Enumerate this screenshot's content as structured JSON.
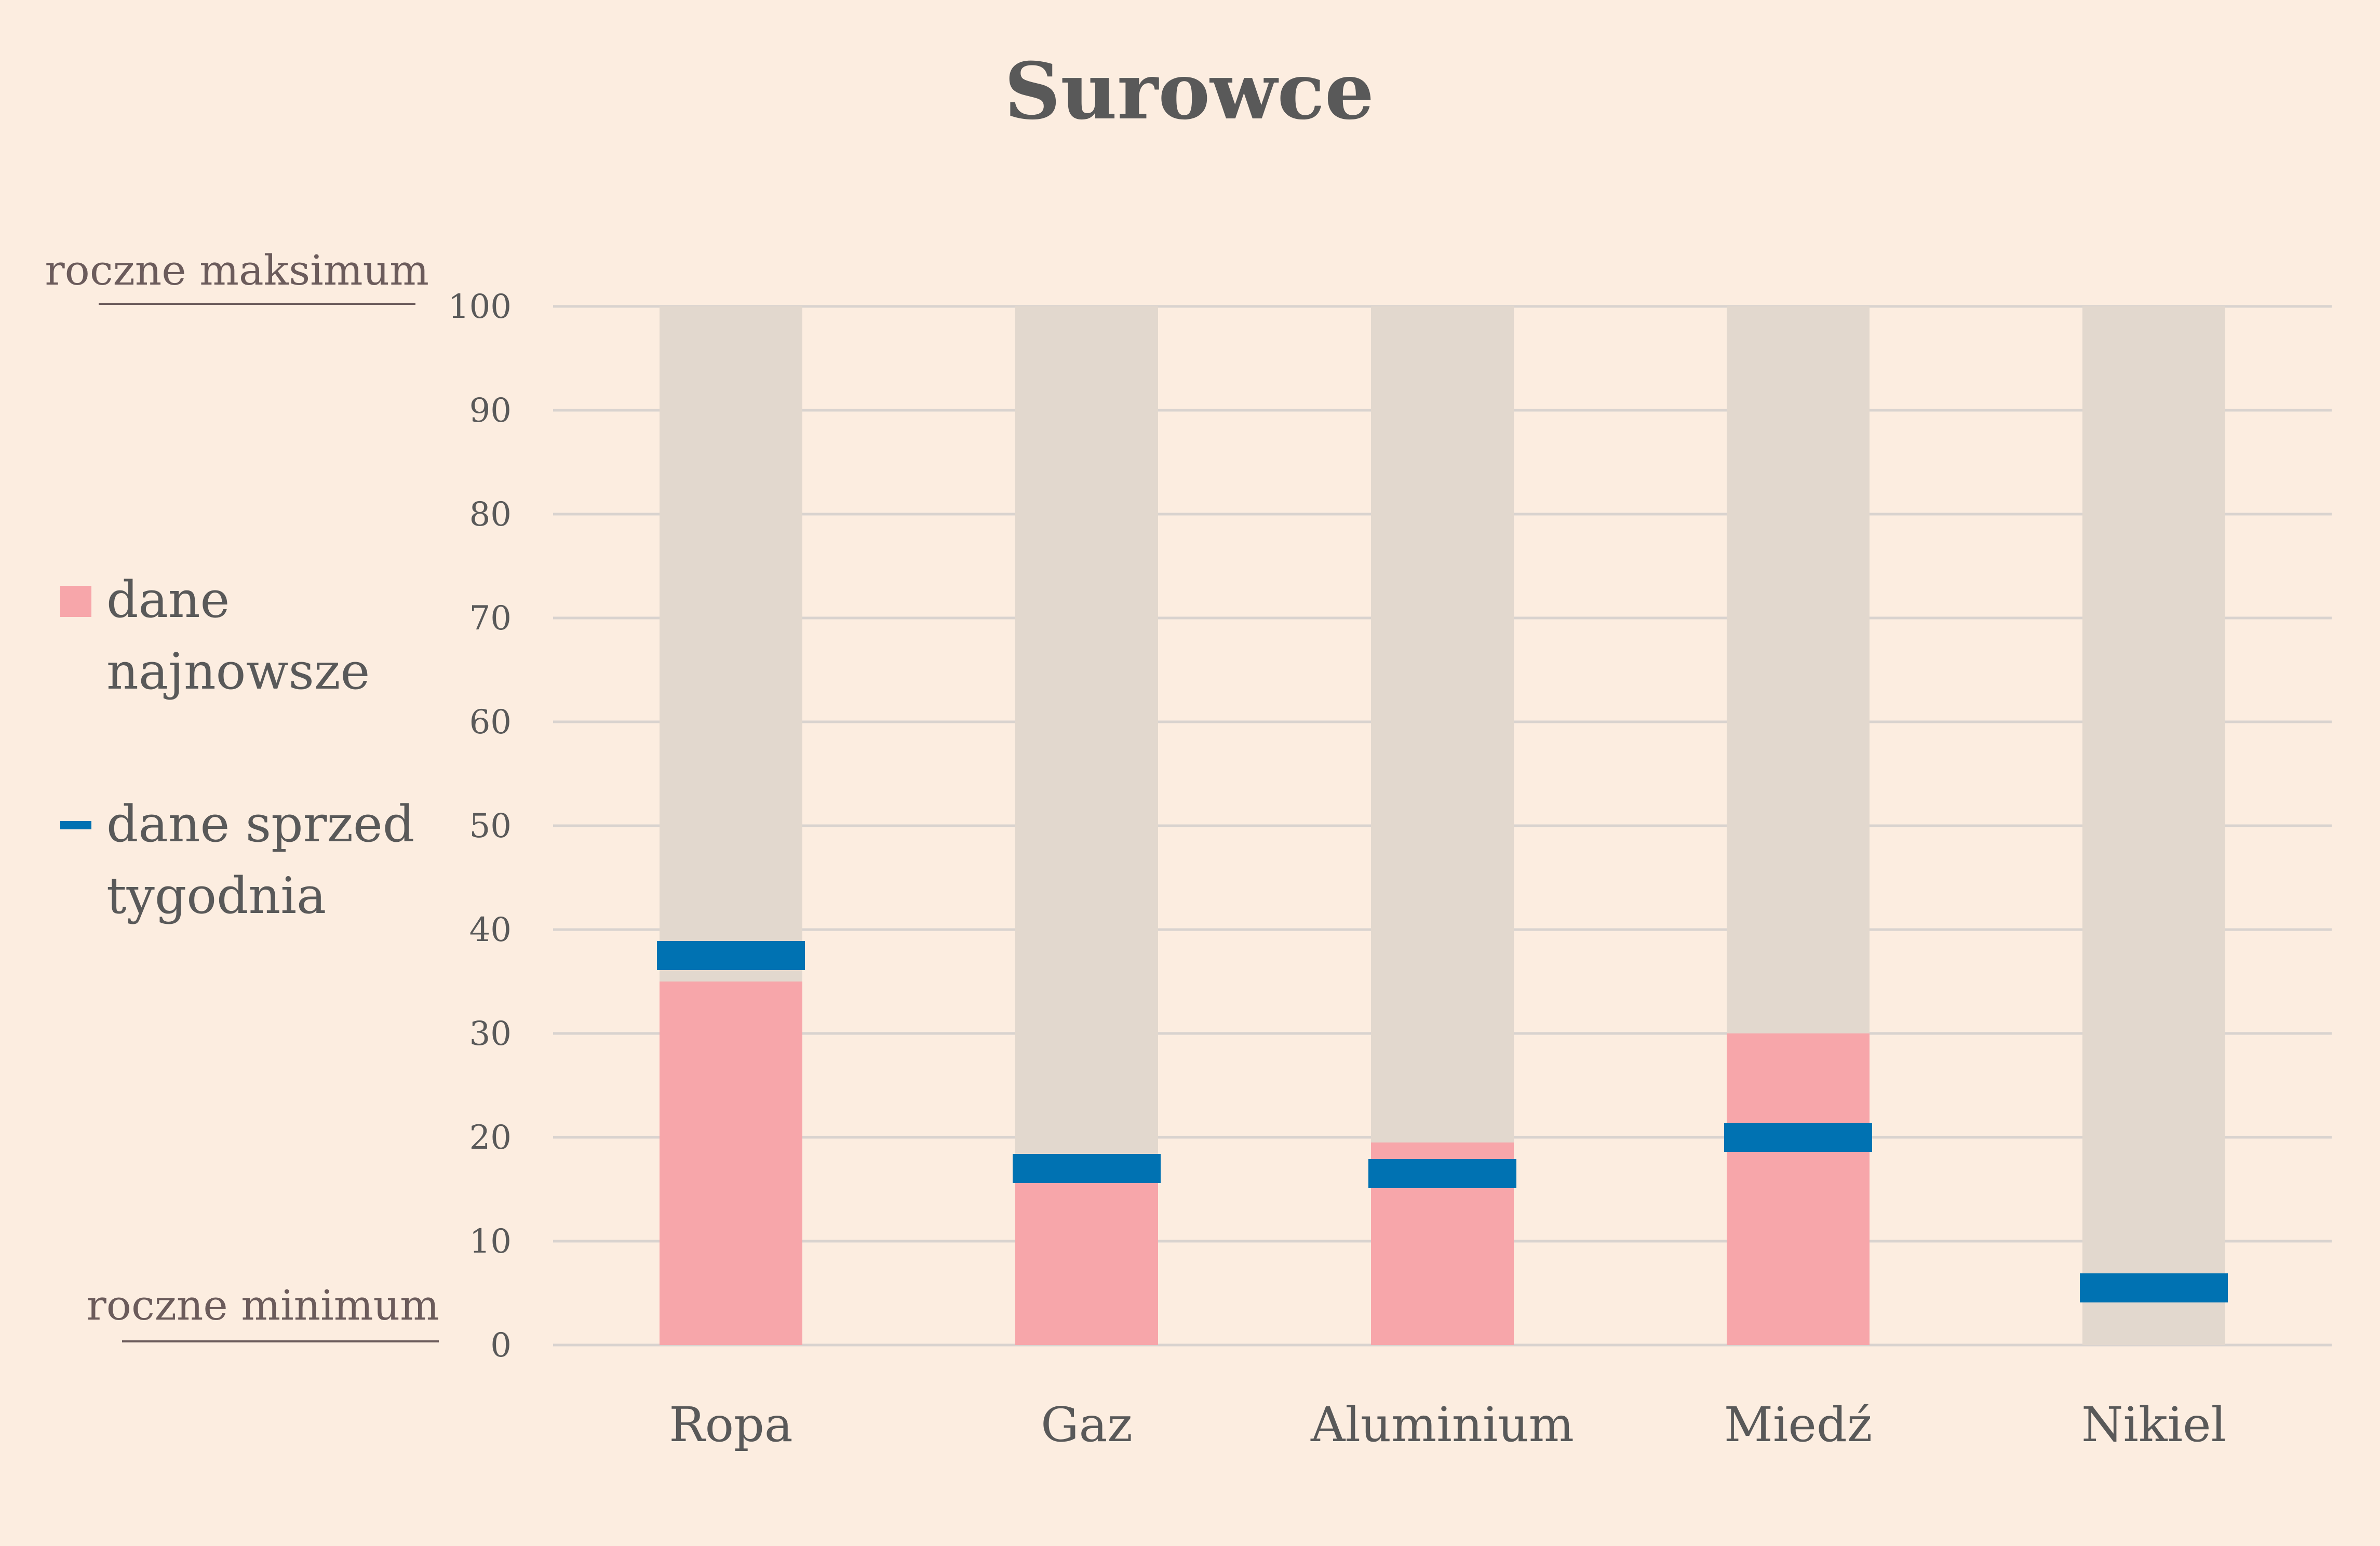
{
  "chart_data": {
    "type": "bar",
    "title": "Surowce",
    "categories": [
      "Ropa",
      "Gaz",
      "Aluminium",
      "Miedź",
      "Nikiel"
    ],
    "ylim": [
      0,
      100
    ],
    "yticks": [
      0,
      10,
      20,
      30,
      40,
      50,
      60,
      70,
      80,
      90,
      100
    ],
    "grid": true,
    "legend_placement": "left",
    "range_labels": {
      "max": "roczne maksimum",
      "min": "roczne minimum"
    },
    "series": [
      {
        "name": "dane najnowsze",
        "legend_lines": [
          "dane",
          "najnowsze"
        ],
        "kind": "bar",
        "color": "#f7a6aa",
        "values": [
          35,
          16,
          19.5,
          30,
          0
        ]
      },
      {
        "name": "dane sprzed tygodnia",
        "legend_lines": [
          "dane sprzed",
          "tygodnia"
        ],
        "kind": "marker",
        "color": "#0072b2",
        "values": [
          37.5,
          17,
          16.5,
          20,
          5.5
        ]
      }
    ],
    "range_band": {
      "from": 0,
      "to": 100,
      "color": "#e2d8ce"
    }
  }
}
